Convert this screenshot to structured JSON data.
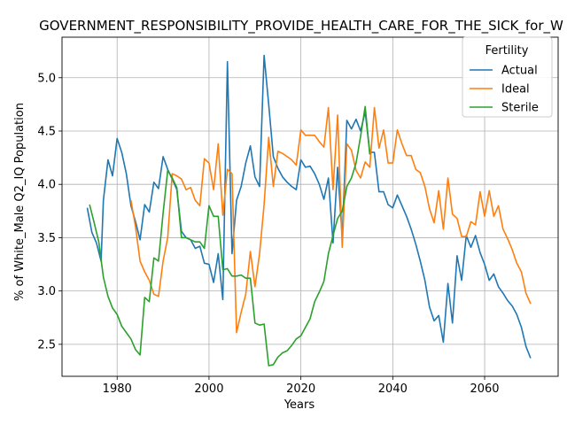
{
  "chart_data": {
    "type": "line",
    "title": "GOVERNMENT_RESPONSIBILITY_PROVIDE_HEALTH_CARE_FOR_THE_SICK_for_W",
    "xlabel": "Years",
    "ylabel": "% of White_Male Q2_IQ Population",
    "xlim": [
      1968,
      2076
    ],
    "ylim": [
      2.2,
      5.38
    ],
    "xticks": [
      1980,
      2000,
      2020,
      2040,
      2060
    ],
    "yticks": [
      2.5,
      3.0,
      3.5,
      4.0,
      4.5,
      5.0
    ],
    "grid": true,
    "legend": {
      "title": "Fertility",
      "placement": "top-right"
    },
    "series": [
      {
        "name": "Actual",
        "color": "#1f77b4",
        "points": [
          [
            1973.5,
            3.78
          ],
          [
            1974.5,
            3.55
          ],
          [
            1975.5,
            3.45
          ],
          [
            1976.5,
            3.28
          ],
          [
            1977,
            3.85
          ],
          [
            1978,
            4.23
          ],
          [
            1979,
            4.08
          ],
          [
            1980,
            4.43
          ],
          [
            1981,
            4.3
          ],
          [
            1982,
            4.1
          ],
          [
            1983,
            3.8
          ],
          [
            1984,
            3.65
          ],
          [
            1985,
            3.48
          ],
          [
            1986,
            3.81
          ],
          [
            1987,
            3.74
          ],
          [
            1988,
            4.02
          ],
          [
            1989,
            3.96
          ],
          [
            1990,
            4.26
          ],
          [
            1991,
            4.14
          ],
          [
            1992,
            4.05
          ],
          [
            1993,
            3.95
          ],
          [
            1994,
            3.56
          ],
          [
            1995,
            3.5
          ],
          [
            1996,
            3.48
          ],
          [
            1997,
            3.4
          ],
          [
            1998,
            3.42
          ],
          [
            1999,
            3.26
          ],
          [
            2000,
            3.25
          ],
          [
            2001,
            3.08
          ],
          [
            2002,
            3.35
          ],
          [
            2003,
            2.92
          ],
          [
            2004,
            5.15
          ],
          [
            2005,
            3.35
          ],
          [
            2006,
            3.85
          ],
          [
            2007,
            3.98
          ],
          [
            2008,
            4.2
          ],
          [
            2009,
            4.36
          ],
          [
            2010,
            4.07
          ],
          [
            2011,
            3.98
          ],
          [
            2012,
            5.21
          ],
          [
            2013,
            4.75
          ],
          [
            2014,
            4.26
          ],
          [
            2015,
            4.15
          ],
          [
            2016,
            4.07
          ],
          [
            2017,
            4.02
          ],
          [
            2018,
            3.98
          ],
          [
            2019,
            3.95
          ],
          [
            2020,
            4.23
          ],
          [
            2021,
            4.16
          ],
          [
            2022,
            4.17
          ],
          [
            2023,
            4.1
          ],
          [
            2024,
            4.0
          ],
          [
            2025,
            3.86
          ],
          [
            2026,
            4.06
          ],
          [
            2027,
            3.45
          ],
          [
            2028,
            4.16
          ],
          [
            2029,
            3.5
          ],
          [
            2030,
            4.6
          ],
          [
            2031,
            4.52
          ],
          [
            2032,
            4.61
          ],
          [
            2033,
            4.5
          ],
          [
            2034,
            4.68
          ],
          [
            2035,
            4.3
          ],
          [
            2036,
            4.3
          ],
          [
            2037,
            3.93
          ],
          [
            2038,
            3.93
          ],
          [
            2039,
            3.81
          ],
          [
            2040,
            3.78
          ],
          [
            2041,
            3.9
          ],
          [
            2042,
            3.8
          ],
          [
            2043,
            3.7
          ],
          [
            2044,
            3.58
          ],
          [
            2045,
            3.44
          ],
          [
            2046,
            3.28
          ],
          [
            2047,
            3.1
          ],
          [
            2048,
            2.85
          ],
          [
            2049,
            2.72
          ],
          [
            2050,
            2.77
          ],
          [
            2051,
            2.52
          ],
          [
            2052,
            3.07
          ],
          [
            2053,
            2.7
          ],
          [
            2054,
            3.33
          ],
          [
            2055,
            3.1
          ],
          [
            2056,
            3.52
          ],
          [
            2057,
            3.41
          ],
          [
            2058,
            3.52
          ],
          [
            2059,
            3.36
          ],
          [
            2060,
            3.25
          ],
          [
            2061,
            3.1
          ],
          [
            2062,
            3.16
          ],
          [
            2063,
            3.04
          ],
          [
            2064,
            2.98
          ],
          [
            2065,
            2.91
          ],
          [
            2066,
            2.86
          ],
          [
            2067,
            2.78
          ],
          [
            2068,
            2.66
          ],
          [
            2069,
            2.48
          ],
          [
            2070,
            2.37
          ]
        ]
      },
      {
        "name": "Ideal",
        "color": "#ff7f0e",
        "points": [
          [
            1983,
            3.85
          ],
          [
            1984,
            3.6
          ],
          [
            1985,
            3.28
          ],
          [
            1986,
            3.18
          ],
          [
            1987,
            3.1
          ],
          [
            1988,
            2.97
          ],
          [
            1989,
            2.95
          ],
          [
            1990,
            3.28
          ],
          [
            1991,
            3.5
          ],
          [
            1992,
            4.1
          ],
          [
            1993,
            4.08
          ],
          [
            1994,
            4.05
          ],
          [
            1995,
            3.95
          ],
          [
            1996,
            3.97
          ],
          [
            1997,
            3.85
          ],
          [
            1998,
            3.8
          ],
          [
            1999,
            4.24
          ],
          [
            2000,
            4.2
          ],
          [
            2001,
            3.95
          ],
          [
            2002,
            4.38
          ],
          [
            2003,
            3.71
          ],
          [
            2004,
            4.14
          ],
          [
            2005,
            4.1
          ],
          [
            2006,
            2.61
          ],
          [
            2007,
            2.8
          ],
          [
            2008,
            2.97
          ],
          [
            2009,
            3.37
          ],
          [
            2010,
            3.04
          ],
          [
            2011,
            3.35
          ],
          [
            2012,
            3.81
          ],
          [
            2013,
            4.44
          ],
          [
            2014,
            3.98
          ],
          [
            2015,
            4.31
          ],
          [
            2016,
            4.29
          ],
          [
            2017,
            4.26
          ],
          [
            2018,
            4.23
          ],
          [
            2019,
            4.18
          ],
          [
            2020,
            4.51
          ],
          [
            2021,
            4.46
          ],
          [
            2022,
            4.46
          ],
          [
            2023,
            4.46
          ],
          [
            2024,
            4.4
          ],
          [
            2025,
            4.35
          ],
          [
            2026,
            4.72
          ],
          [
            2027,
            3.95
          ],
          [
            2028,
            4.65
          ],
          [
            2029,
            3.41
          ],
          [
            2030,
            4.38
          ],
          [
            2031,
            4.32
          ],
          [
            2032,
            4.13
          ],
          [
            2033,
            4.06
          ],
          [
            2034,
            4.21
          ],
          [
            2035,
            4.16
          ],
          [
            2036,
            4.72
          ],
          [
            2037,
            4.34
          ],
          [
            2038,
            4.51
          ],
          [
            2039,
            4.2
          ],
          [
            2040,
            4.2
          ],
          [
            2041,
            4.51
          ],
          [
            2042,
            4.38
          ],
          [
            2043,
            4.27
          ],
          [
            2044,
            4.27
          ],
          [
            2045,
            4.14
          ],
          [
            2046,
            4.11
          ],
          [
            2047,
            3.98
          ],
          [
            2048,
            3.77
          ],
          [
            2049,
            3.64
          ],
          [
            2050,
            3.94
          ],
          [
            2051,
            3.58
          ],
          [
            2052,
            4.06
          ],
          [
            2053,
            3.72
          ],
          [
            2054,
            3.68
          ],
          [
            2055,
            3.51
          ],
          [
            2056,
            3.51
          ],
          [
            2057,
            3.65
          ],
          [
            2058,
            3.62
          ],
          [
            2059,
            3.93
          ],
          [
            2060,
            3.7
          ],
          [
            2061,
            3.94
          ],
          [
            2062,
            3.7
          ],
          [
            2063,
            3.8
          ],
          [
            2064,
            3.58
          ],
          [
            2065,
            3.49
          ],
          [
            2066,
            3.39
          ],
          [
            2067,
            3.26
          ],
          [
            2068,
            3.18
          ],
          [
            2069,
            2.98
          ],
          [
            2070,
            2.88
          ]
        ]
      },
      {
        "name": "Sterile",
        "color": "#2ca02c",
        "points": [
          [
            1974,
            3.81
          ],
          [
            1975,
            3.64
          ],
          [
            1976,
            3.46
          ],
          [
            1977,
            3.13
          ],
          [
            1978,
            2.95
          ],
          [
            1979,
            2.84
          ],
          [
            1980,
            2.78
          ],
          [
            1981,
            2.67
          ],
          [
            1982,
            2.61
          ],
          [
            1983,
            2.55
          ],
          [
            1984,
            2.45
          ],
          [
            1985,
            2.4
          ],
          [
            1986,
            2.94
          ],
          [
            1987,
            2.9
          ],
          [
            1988,
            3.31
          ],
          [
            1989,
            3.28
          ],
          [
            1990,
            3.73
          ],
          [
            1991,
            4.13
          ],
          [
            1992,
            4.06
          ],
          [
            1993,
            3.97
          ],
          [
            1994,
            3.5
          ],
          [
            1995,
            3.5
          ],
          [
            1996,
            3.48
          ],
          [
            1997,
            3.46
          ],
          [
            1998,
            3.46
          ],
          [
            1999,
            3.4
          ],
          [
            2000,
            3.8
          ],
          [
            2001,
            3.7
          ],
          [
            2002,
            3.7
          ],
          [
            2003,
            3.2
          ],
          [
            2004,
            3.21
          ],
          [
            2005,
            3.14
          ],
          [
            2006,
            3.14
          ],
          [
            2007,
            3.15
          ],
          [
            2008,
            3.12
          ],
          [
            2009,
            3.12
          ],
          [
            2010,
            2.7
          ],
          [
            2011,
            2.68
          ],
          [
            2012,
            2.69
          ],
          [
            2013,
            2.3
          ],
          [
            2014,
            2.31
          ],
          [
            2015,
            2.38
          ],
          [
            2016,
            2.42
          ],
          [
            2017,
            2.44
          ],
          [
            2018,
            2.49
          ],
          [
            2019,
            2.55
          ],
          [
            2020,
            2.58
          ],
          [
            2021,
            2.66
          ],
          [
            2022,
            2.74
          ],
          [
            2023,
            2.9
          ],
          [
            2024,
            2.99
          ],
          [
            2025,
            3.09
          ],
          [
            2026,
            3.35
          ],
          [
            2027,
            3.52
          ],
          [
            2028,
            3.68
          ],
          [
            2029,
            3.75
          ],
          [
            2030,
            3.98
          ],
          [
            2031,
            4.06
          ],
          [
            2032,
            4.2
          ],
          [
            2033,
            4.45
          ],
          [
            2034,
            4.73
          ],
          [
            2035,
            4.28
          ]
        ]
      }
    ]
  }
}
